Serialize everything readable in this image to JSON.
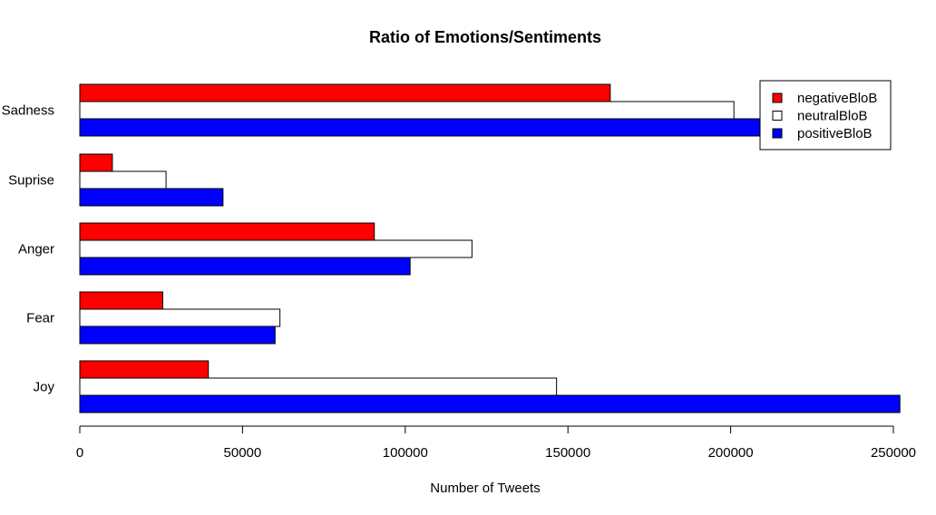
{
  "chart_data": {
    "type": "bar",
    "orientation": "horizontal",
    "title": "Ratio of Emotions/Sentiments",
    "xlabel": "Number of Tweets",
    "ylabel": "",
    "categories": [
      "Joy",
      "Fear",
      "Anger",
      "Suprise",
      "Sadness"
    ],
    "series": [
      {
        "name": "positiveBloB",
        "color": "#0000ff",
        "values": [
          252000,
          60000,
          101500,
          44000,
          240000
        ]
      },
      {
        "name": "neutralBloB",
        "color": "#ffffff",
        "values": [
          146500,
          61500,
          120500,
          26500,
          201000
        ]
      },
      {
        "name": "negativeBloB",
        "color": "#ff0000",
        "values": [
          39500,
          25500,
          90500,
          10000,
          163000
        ]
      }
    ],
    "xlim": [
      0,
      252000
    ],
    "x_ticks": [
      0,
      50000,
      100000,
      150000,
      200000,
      250000
    ],
    "x_tick_labels": [
      "0",
      "50000",
      "100000",
      "150000",
      "200000",
      "250000"
    ],
    "legend": {
      "position": "top-right",
      "entries": [
        {
          "label": "negativeBloB",
          "color": "#ff0000"
        },
        {
          "label": "neutralBloB",
          "color": "#ffffff"
        },
        {
          "label": "positiveBloB",
          "color": "#0000ff"
        }
      ]
    },
    "grid": false
  }
}
